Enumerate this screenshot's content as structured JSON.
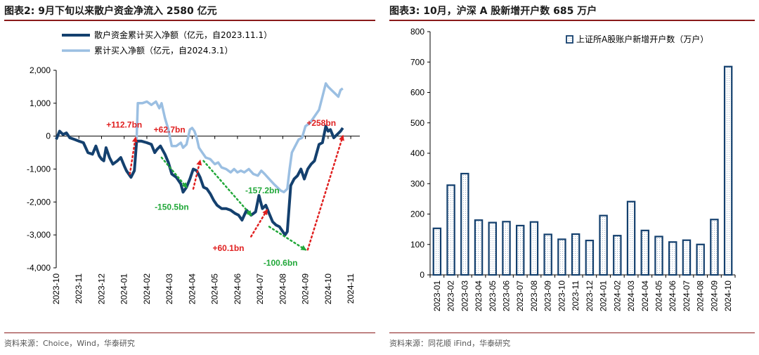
{
  "colors": {
    "dark_blue": "#14406e",
    "light_blue": "#9bbfe2",
    "red": "#e02020",
    "green": "#22a83a",
    "title_rule": "#8a1a1a"
  },
  "left": {
    "title": "图表2:  9月下旬以来散户资金净流入 2580 亿元",
    "source": "资料来源：Choice，Wind，华泰研究",
    "chart_data": {
      "type": "line",
      "ylim": [
        -4000,
        2000
      ],
      "yticks": [
        2000,
        1000,
        0,
        -1000,
        -2000,
        -3000,
        -4000
      ],
      "ytick_labels": [
        "2,000",
        "1,000",
        "0",
        "-1,000",
        "-2,000",
        "-3,000",
        "-4,000"
      ],
      "x_domain": [
        0,
        13.4
      ],
      "xticks": [
        "2023-10",
        "2023-11",
        "2023-12",
        "2024-01",
        "2024-02",
        "2024-03",
        "2024-04",
        "2024-05",
        "2024-06",
        "2024-07",
        "2024-08",
        "2024-09",
        "2024-10",
        "2024-11"
      ],
      "series": [
        {
          "name": "散户资金累计买入净额（亿元，自2023.11.1）",
          "points": [
            [
              0.0,
              -100
            ],
            [
              0.15,
              150
            ],
            [
              0.3,
              50
            ],
            [
              0.45,
              100
            ],
            [
              0.6,
              -50
            ],
            [
              0.8,
              -100
            ],
            [
              1.0,
              -150
            ],
            [
              1.2,
              -200
            ],
            [
              1.4,
              -500
            ],
            [
              1.6,
              -550
            ],
            [
              1.75,
              -300
            ],
            [
              1.9,
              -600
            ],
            [
              2.0,
              -700
            ],
            [
              2.1,
              -750
            ],
            [
              2.2,
              -350
            ],
            [
              2.35,
              -650
            ],
            [
              2.5,
              -850
            ],
            [
              2.7,
              -750
            ],
            [
              2.85,
              -650
            ],
            [
              3.0,
              -900
            ],
            [
              3.1,
              -1050
            ],
            [
              3.3,
              -1250
            ],
            [
              3.45,
              -1050
            ],
            [
              3.55,
              -150
            ],
            [
              3.75,
              -150
            ],
            [
              4.0,
              -200
            ],
            [
              4.2,
              -250
            ],
            [
              4.35,
              -500
            ],
            [
              4.45,
              -400
            ],
            [
              4.6,
              -300
            ],
            [
              4.8,
              -550
            ],
            [
              4.95,
              -800
            ],
            [
              5.1,
              -1150
            ],
            [
              5.3,
              -1250
            ],
            [
              5.5,
              -1450
            ],
            [
              5.6,
              -1700
            ],
            [
              5.75,
              -1550
            ],
            [
              5.9,
              -1300
            ],
            [
              6.05,
              -1000
            ],
            [
              6.2,
              -1050
            ],
            [
              6.35,
              -1250
            ],
            [
              6.5,
              -1550
            ],
            [
              6.65,
              -1600
            ],
            [
              6.8,
              -1750
            ],
            [
              6.95,
              -1950
            ],
            [
              7.1,
              -2100
            ],
            [
              7.3,
              -2200
            ],
            [
              7.5,
              -2200
            ],
            [
              7.7,
              -2250
            ],
            [
              7.9,
              -2350
            ],
            [
              8.05,
              -2400
            ],
            [
              8.2,
              -2550
            ],
            [
              8.4,
              -2250
            ],
            [
              8.6,
              -2400
            ],
            [
              8.8,
              -2300
            ],
            [
              8.95,
              -1800
            ],
            [
              9.1,
              -2200
            ],
            [
              9.25,
              -2100
            ],
            [
              9.4,
              -2350
            ],
            [
              9.55,
              -2600
            ],
            [
              9.7,
              -2700
            ],
            [
              9.85,
              -2750
            ],
            [
              10.0,
              -2900
            ],
            [
              10.1,
              -3000
            ],
            [
              10.2,
              -2900
            ],
            [
              10.35,
              -1500
            ],
            [
              10.5,
              -1300
            ],
            [
              10.65,
              -1200
            ],
            [
              10.8,
              -1000
            ],
            [
              10.95,
              -1300
            ],
            [
              11.1,
              -1000
            ],
            [
              11.25,
              -850
            ],
            [
              11.4,
              -750
            ],
            [
              11.6,
              -250
            ],
            [
              11.75,
              -200
            ],
            [
              11.9,
              300
            ],
            [
              12.0,
              150
            ],
            [
              12.1,
              200
            ],
            [
              12.25,
              -50
            ],
            [
              12.4,
              50
            ],
            [
              12.55,
              150
            ],
            [
              12.65,
              250
            ]
          ]
        },
        {
          "name": "累计买入净额（亿元，自2024.3.1）",
          "points": [
            [
              3.55,
              -100
            ],
            [
              3.6,
              1000
            ],
            [
              3.8,
              1000
            ],
            [
              4.0,
              1050
            ],
            [
              4.2,
              950
            ],
            [
              4.4,
              1050
            ],
            [
              4.55,
              850
            ],
            [
              4.65,
              1000
            ],
            [
              4.8,
              550
            ],
            [
              4.95,
              200
            ],
            [
              5.1,
              -300
            ],
            [
              5.3,
              -300
            ],
            [
              5.5,
              -200
            ],
            [
              5.6,
              -350
            ],
            [
              5.75,
              -250
            ],
            [
              5.9,
              200
            ],
            [
              6.0,
              250
            ],
            [
              6.1,
              150
            ],
            [
              6.2,
              -50
            ],
            [
              6.3,
              -350
            ],
            [
              6.45,
              -500
            ],
            [
              6.6,
              -650
            ],
            [
              6.8,
              -700
            ],
            [
              7.0,
              -850
            ],
            [
              7.15,
              -800
            ],
            [
              7.3,
              -950
            ],
            [
              7.5,
              -1000
            ],
            [
              7.7,
              -1100
            ],
            [
              7.85,
              -1000
            ],
            [
              8.0,
              -1100
            ],
            [
              8.15,
              -1050
            ],
            [
              8.3,
              -1100
            ],
            [
              8.5,
              -1000
            ],
            [
              8.7,
              -1150
            ],
            [
              8.9,
              -1200
            ],
            [
              9.05,
              -1050
            ],
            [
              9.2,
              -1150
            ],
            [
              9.4,
              -1300
            ],
            [
              9.6,
              -1450
            ],
            [
              9.75,
              -1550
            ],
            [
              9.9,
              -1650
            ],
            [
              10.05,
              -1700
            ],
            [
              10.2,
              -1600
            ],
            [
              10.3,
              -1000
            ],
            [
              10.4,
              -500
            ],
            [
              10.55,
              -300
            ],
            [
              10.7,
              -100
            ],
            [
              10.85,
              -50
            ],
            [
              11.0,
              300
            ],
            [
              11.2,
              400
            ],
            [
              11.4,
              600
            ],
            [
              11.6,
              800
            ],
            [
              11.75,
              1200
            ],
            [
              11.9,
              1600
            ],
            [
              12.0,
              1500
            ],
            [
              12.15,
              1400
            ],
            [
              12.3,
              1300
            ],
            [
              12.45,
              1200
            ],
            [
              12.55,
              1400
            ],
            [
              12.65,
              1450
            ]
          ]
        }
      ],
      "annotations": [
        {
          "text": "+112.7bn",
          "color": "red",
          "pos": [
            3.0,
            350
          ]
        },
        {
          "text": "+62.7bn",
          "color": "red",
          "pos": [
            5.0,
            200
          ]
        },
        {
          "text": "+258bn",
          "color": "red",
          "pos": [
            11.7,
            400
          ]
        },
        {
          "text": "+60.1bn",
          "color": "red",
          "pos": [
            7.6,
            -3400
          ]
        },
        {
          "text": "-150.5bn",
          "color": "green",
          "pos": [
            5.1,
            -2150
          ]
        },
        {
          "text": "-157.2bn",
          "color": "green",
          "pos": [
            9.1,
            -1650
          ]
        },
        {
          "text": "-100.6bn",
          "color": "green",
          "pos": [
            9.9,
            -3850
          ]
        }
      ],
      "arrows": [
        {
          "color": "red",
          "from": [
            3.25,
            -1150
          ],
          "to": [
            3.5,
            -50
          ]
        },
        {
          "color": "red",
          "from": [
            6.05,
            -1600
          ],
          "to": [
            6.35,
            -750
          ]
        },
        {
          "color": "red",
          "from": [
            8.6,
            -3050
          ],
          "to": [
            9.3,
            -2250
          ]
        },
        {
          "color": "red",
          "from": [
            11.1,
            -3450
          ],
          "to": [
            12.65,
            0
          ]
        },
        {
          "color": "green",
          "from": [
            4.65,
            -650
          ],
          "to": [
            5.75,
            -1550
          ]
        },
        {
          "color": "green",
          "from": [
            6.5,
            -750
          ],
          "to": [
            8.6,
            -2400
          ]
        },
        {
          "color": "green",
          "from": [
            9.4,
            -2750
          ],
          "to": [
            11.0,
            -3450
          ]
        }
      ]
    }
  },
  "right": {
    "title": "图表3:  10月，沪深 A 股新增开户数 685 万户",
    "source": "资料来源：同花顺 iFind，华泰研究",
    "chart_data": {
      "type": "bar",
      "title": "10月，沪深 A 股新增开户数 685 万户",
      "categories": [
        "2023-01",
        "2023-02",
        "2023-03",
        "2023-04",
        "2023-05",
        "2023-06",
        "2023-07",
        "2023-08",
        "2023-09",
        "2023-10",
        "2023-11",
        "2023-12",
        "2024-01",
        "2024-02",
        "2024-03",
        "2024-04",
        "2024-05",
        "2024-06",
        "2024-07",
        "2024-08",
        "2024-09",
        "2024-10"
      ],
      "series": [
        {
          "name": "上证所A股账户新增开户数（万户）",
          "values": [
            153,
            295,
            333,
            180,
            172,
            175,
            162,
            174,
            133,
            117,
            134,
            113,
            195,
            129,
            241,
            146,
            126,
            108,
            114,
            100,
            182,
            685
          ]
        }
      ],
      "ylim": [
        0,
        800
      ],
      "yticks": [
        0,
        100,
        200,
        300,
        400,
        500,
        600,
        700,
        800
      ],
      "legend": "top-right"
    }
  }
}
